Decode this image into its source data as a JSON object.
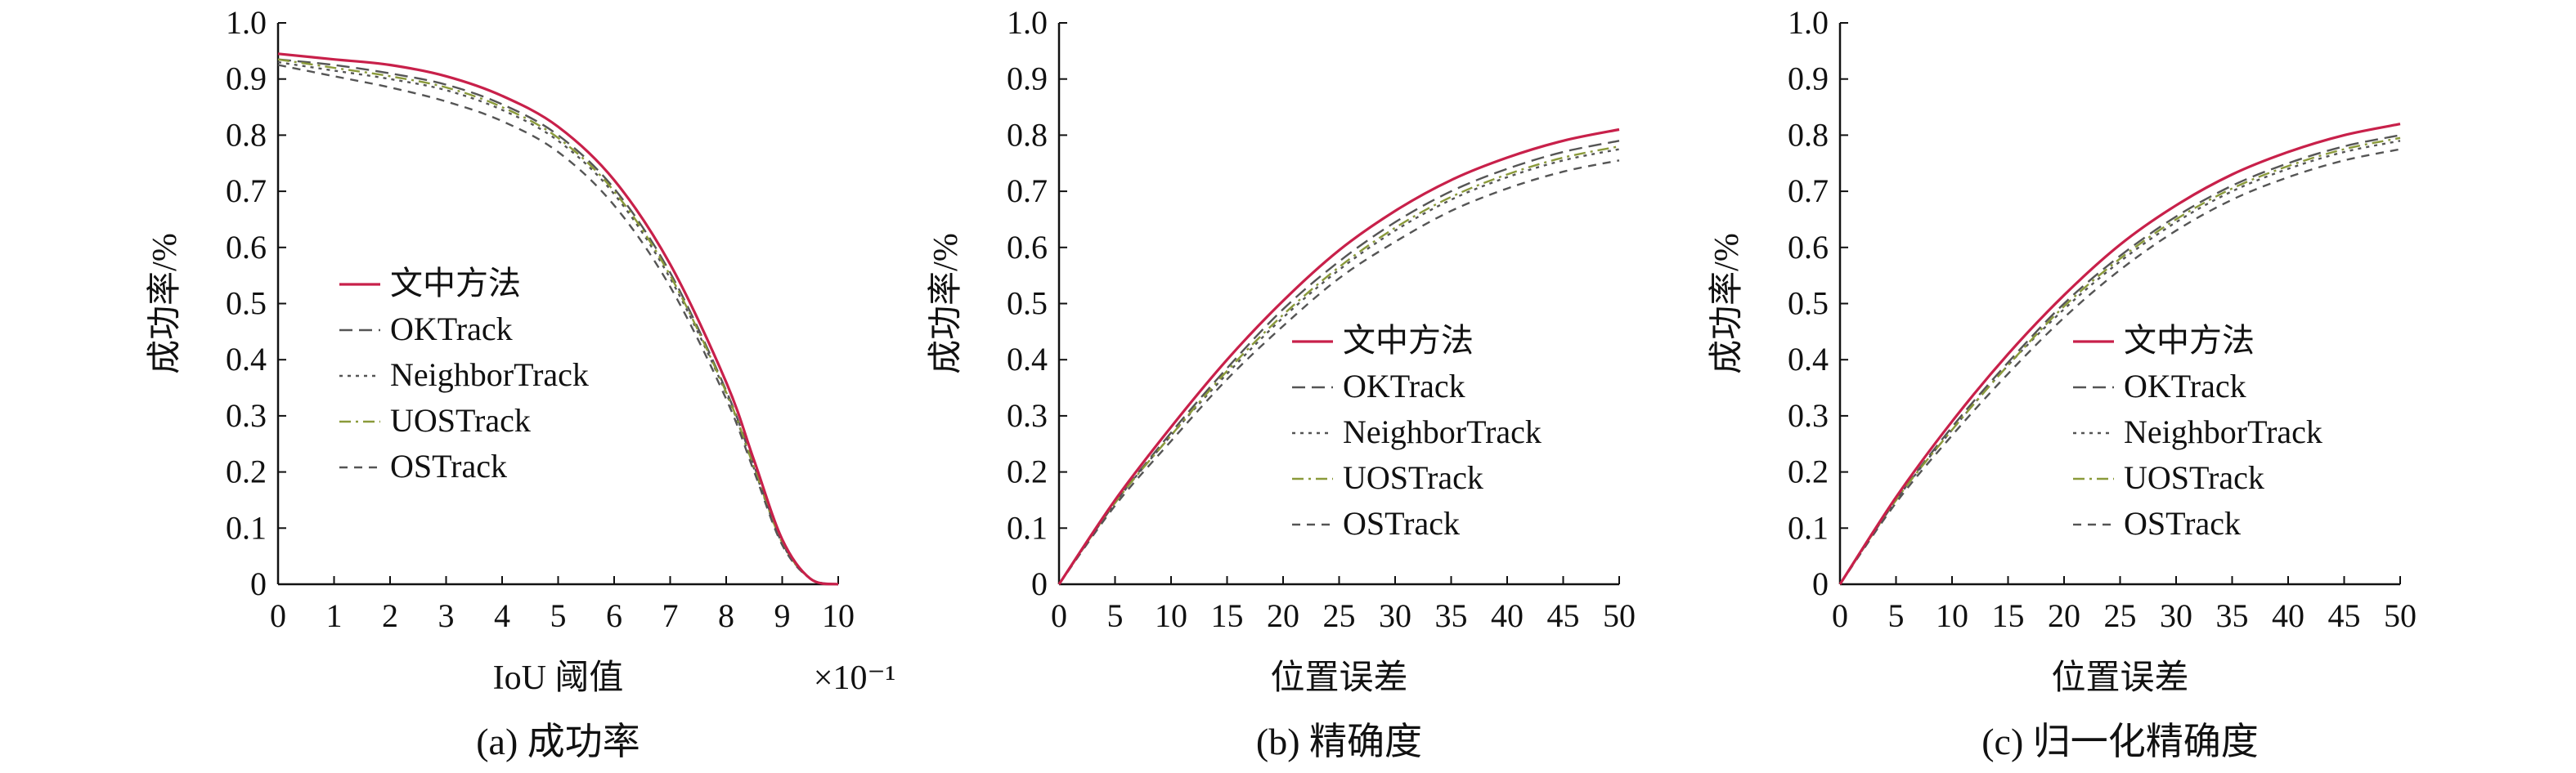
{
  "chart_data": [
    {
      "type": "line",
      "caption": "(a) 成功率",
      "xlabel": "IoU 阈值",
      "x_multiplier": "×10⁻¹",
      "ylabel": "成功率/%",
      "xlim": [
        0,
        10
      ],
      "ylim": [
        0,
        1.0
      ],
      "x_ticks": [
        "0",
        "1",
        "2",
        "3",
        "4",
        "5",
        "6",
        "7",
        "8",
        "9",
        "10"
      ],
      "y_ticks": [
        "0",
        "0.1",
        "0.2",
        "0.3",
        "0.4",
        "0.5",
        "0.6",
        "0.7",
        "0.8",
        "0.9",
        "1.0"
      ],
      "legend_position": "center-left",
      "x": [
        0,
        1,
        2,
        3,
        4,
        5,
        6,
        7,
        8,
        8.5,
        9,
        9.5,
        10
      ],
      "series": [
        {
          "name": "文中方法",
          "color": "#c8204a",
          "dash": "solid",
          "values": [
            0.945,
            0.935,
            0.925,
            0.905,
            0.87,
            0.815,
            0.72,
            0.57,
            0.36,
            0.22,
            0.08,
            0.01,
            0.0
          ]
        },
        {
          "name": "OKTrack",
          "color": "#555555",
          "dash": "longdash",
          "values": [
            0.935,
            0.925,
            0.91,
            0.89,
            0.855,
            0.8,
            0.705,
            0.555,
            0.345,
            0.21,
            0.075,
            0.01,
            0.0
          ]
        },
        {
          "name": "NeighborTrack",
          "color": "#555555",
          "dash": "dot",
          "values": [
            0.93,
            0.915,
            0.9,
            0.88,
            0.845,
            0.79,
            0.695,
            0.545,
            0.34,
            0.205,
            0.073,
            0.01,
            0.0
          ]
        },
        {
          "name": "UOSTrack",
          "color": "#8a9a3a",
          "dash": "dashdot",
          "values": [
            0.935,
            0.92,
            0.905,
            0.885,
            0.85,
            0.795,
            0.7,
            0.55,
            0.342,
            0.207,
            0.074,
            0.01,
            0.0
          ]
        },
        {
          "name": "OSTrack",
          "color": "#555555",
          "dash": "dash",
          "values": [
            0.925,
            0.905,
            0.885,
            0.86,
            0.825,
            0.77,
            0.675,
            0.53,
            0.33,
            0.2,
            0.07,
            0.01,
            0.0
          ]
        }
      ]
    },
    {
      "type": "line",
      "caption": "(b) 精确度",
      "xlabel": "位置误差",
      "x_multiplier": "",
      "ylabel": "成功率/%",
      "xlim": [
        0,
        50
      ],
      "ylim": [
        0,
        1.0
      ],
      "x_ticks": [
        "0",
        "5",
        "10",
        "15",
        "20",
        "25",
        "30",
        "35",
        "40",
        "45",
        "50"
      ],
      "y_ticks": [
        "0",
        "0.1",
        "0.2",
        "0.3",
        "0.4",
        "0.5",
        "0.6",
        "0.7",
        "0.8",
        "0.9",
        "1.0"
      ],
      "legend_position": "center-right",
      "x": [
        0,
        5,
        10,
        15,
        20,
        25,
        30,
        35,
        40,
        45,
        50
      ],
      "series": [
        {
          "name": "文中方法",
          "color": "#c8204a",
          "dash": "solid",
          "values": [
            0.0,
            0.15,
            0.28,
            0.4,
            0.505,
            0.595,
            0.665,
            0.72,
            0.76,
            0.79,
            0.81
          ]
        },
        {
          "name": "OKTrack",
          "color": "#555555",
          "dash": "longdash",
          "values": [
            0.0,
            0.145,
            0.27,
            0.385,
            0.49,
            0.575,
            0.645,
            0.7,
            0.74,
            0.77,
            0.79
          ]
        },
        {
          "name": "NeighborTrack",
          "color": "#555555",
          "dash": "dot",
          "values": [
            0.0,
            0.145,
            0.265,
            0.375,
            0.475,
            0.56,
            0.63,
            0.685,
            0.725,
            0.755,
            0.775
          ]
        },
        {
          "name": "UOSTrack",
          "color": "#8a9a3a",
          "dash": "dashdot",
          "values": [
            0.0,
            0.145,
            0.265,
            0.38,
            0.48,
            0.565,
            0.635,
            0.69,
            0.73,
            0.76,
            0.78
          ]
        },
        {
          "name": "OSTrack",
          "color": "#555555",
          "dash": "dash",
          "values": [
            0.0,
            0.14,
            0.255,
            0.365,
            0.46,
            0.545,
            0.61,
            0.665,
            0.705,
            0.735,
            0.755
          ]
        }
      ]
    },
    {
      "type": "line",
      "caption": "(c) 归一化精确度",
      "xlabel": "位置误差",
      "x_multiplier": "",
      "ylabel": "成功率/%",
      "xlim": [
        0,
        50
      ],
      "ylim": [
        0,
        1.0
      ],
      "x_ticks": [
        "0",
        "5",
        "10",
        "15",
        "20",
        "25",
        "30",
        "35",
        "40",
        "45",
        "50"
      ],
      "y_ticks": [
        "0",
        "0.1",
        "0.2",
        "0.3",
        "0.4",
        "0.5",
        "0.6",
        "0.7",
        "0.8",
        "0.9",
        "1.0"
      ],
      "legend_position": "center-right",
      "x": [
        0,
        5,
        10,
        15,
        20,
        25,
        30,
        35,
        40,
        45,
        50
      ],
      "series": [
        {
          "name": "文中方法",
          "color": "#c8204a",
          "dash": "solid",
          "values": [
            0.0,
            0.155,
            0.29,
            0.41,
            0.515,
            0.605,
            0.675,
            0.73,
            0.77,
            0.8,
            0.82
          ]
        },
        {
          "name": "OKTrack",
          "color": "#555555",
          "dash": "longdash",
          "values": [
            0.0,
            0.15,
            0.28,
            0.395,
            0.5,
            0.585,
            0.655,
            0.71,
            0.75,
            0.78,
            0.8
          ]
        },
        {
          "name": "NeighborTrack",
          "color": "#555555",
          "dash": "dot",
          "values": [
            0.0,
            0.15,
            0.275,
            0.39,
            0.49,
            0.575,
            0.645,
            0.7,
            0.74,
            0.77,
            0.79
          ]
        },
        {
          "name": "UOSTrack",
          "color": "#8a9a3a",
          "dash": "dashdot",
          "values": [
            0.0,
            0.15,
            0.275,
            0.39,
            0.495,
            0.58,
            0.65,
            0.705,
            0.745,
            0.775,
            0.795
          ]
        },
        {
          "name": "OSTrack",
          "color": "#555555",
          "dash": "dash",
          "values": [
            0.0,
            0.145,
            0.265,
            0.375,
            0.475,
            0.56,
            0.63,
            0.685,
            0.725,
            0.755,
            0.775
          ]
        }
      ]
    }
  ]
}
